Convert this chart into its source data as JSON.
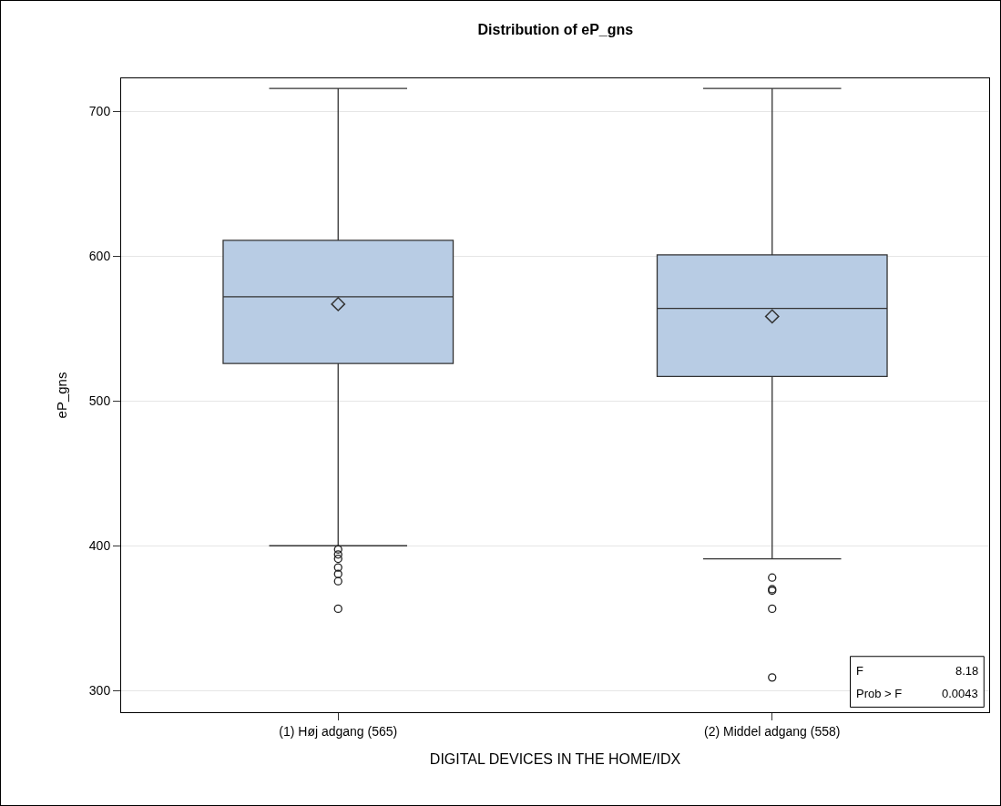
{
  "chart_data": {
    "type": "box",
    "title": "Distribution of eP_gns",
    "xlabel": "DIGITAL DEVICES IN THE HOME/IDX",
    "ylabel": "eP_gns",
    "categories": [
      "(1) Høj adgang (565)",
      "(2) Middel adgang (558)"
    ],
    "color": "#b8cce4",
    "boxes": [
      {
        "low": 400,
        "q1": 526,
        "median": 572,
        "q3": 611,
        "high": 716,
        "mean": 567,
        "outliers": [
          397.5,
          394,
          391,
          385,
          380.5,
          375.5,
          356.5
        ]
      },
      {
        "low": 391,
        "q1": 517,
        "median": 564,
        "q3": 601,
        "high": 716,
        "mean": 558.5,
        "outliers": [
          378,
          370,
          369,
          356.5,
          309
        ]
      }
    ],
    "ylim": [
      285,
      723
    ],
    "yticks": [
      300,
      400,
      500,
      600,
      700
    ],
    "grid": "y",
    "annotations": [
      "F",
      "8.18",
      "Prob > F",
      "0.0043"
    ]
  }
}
